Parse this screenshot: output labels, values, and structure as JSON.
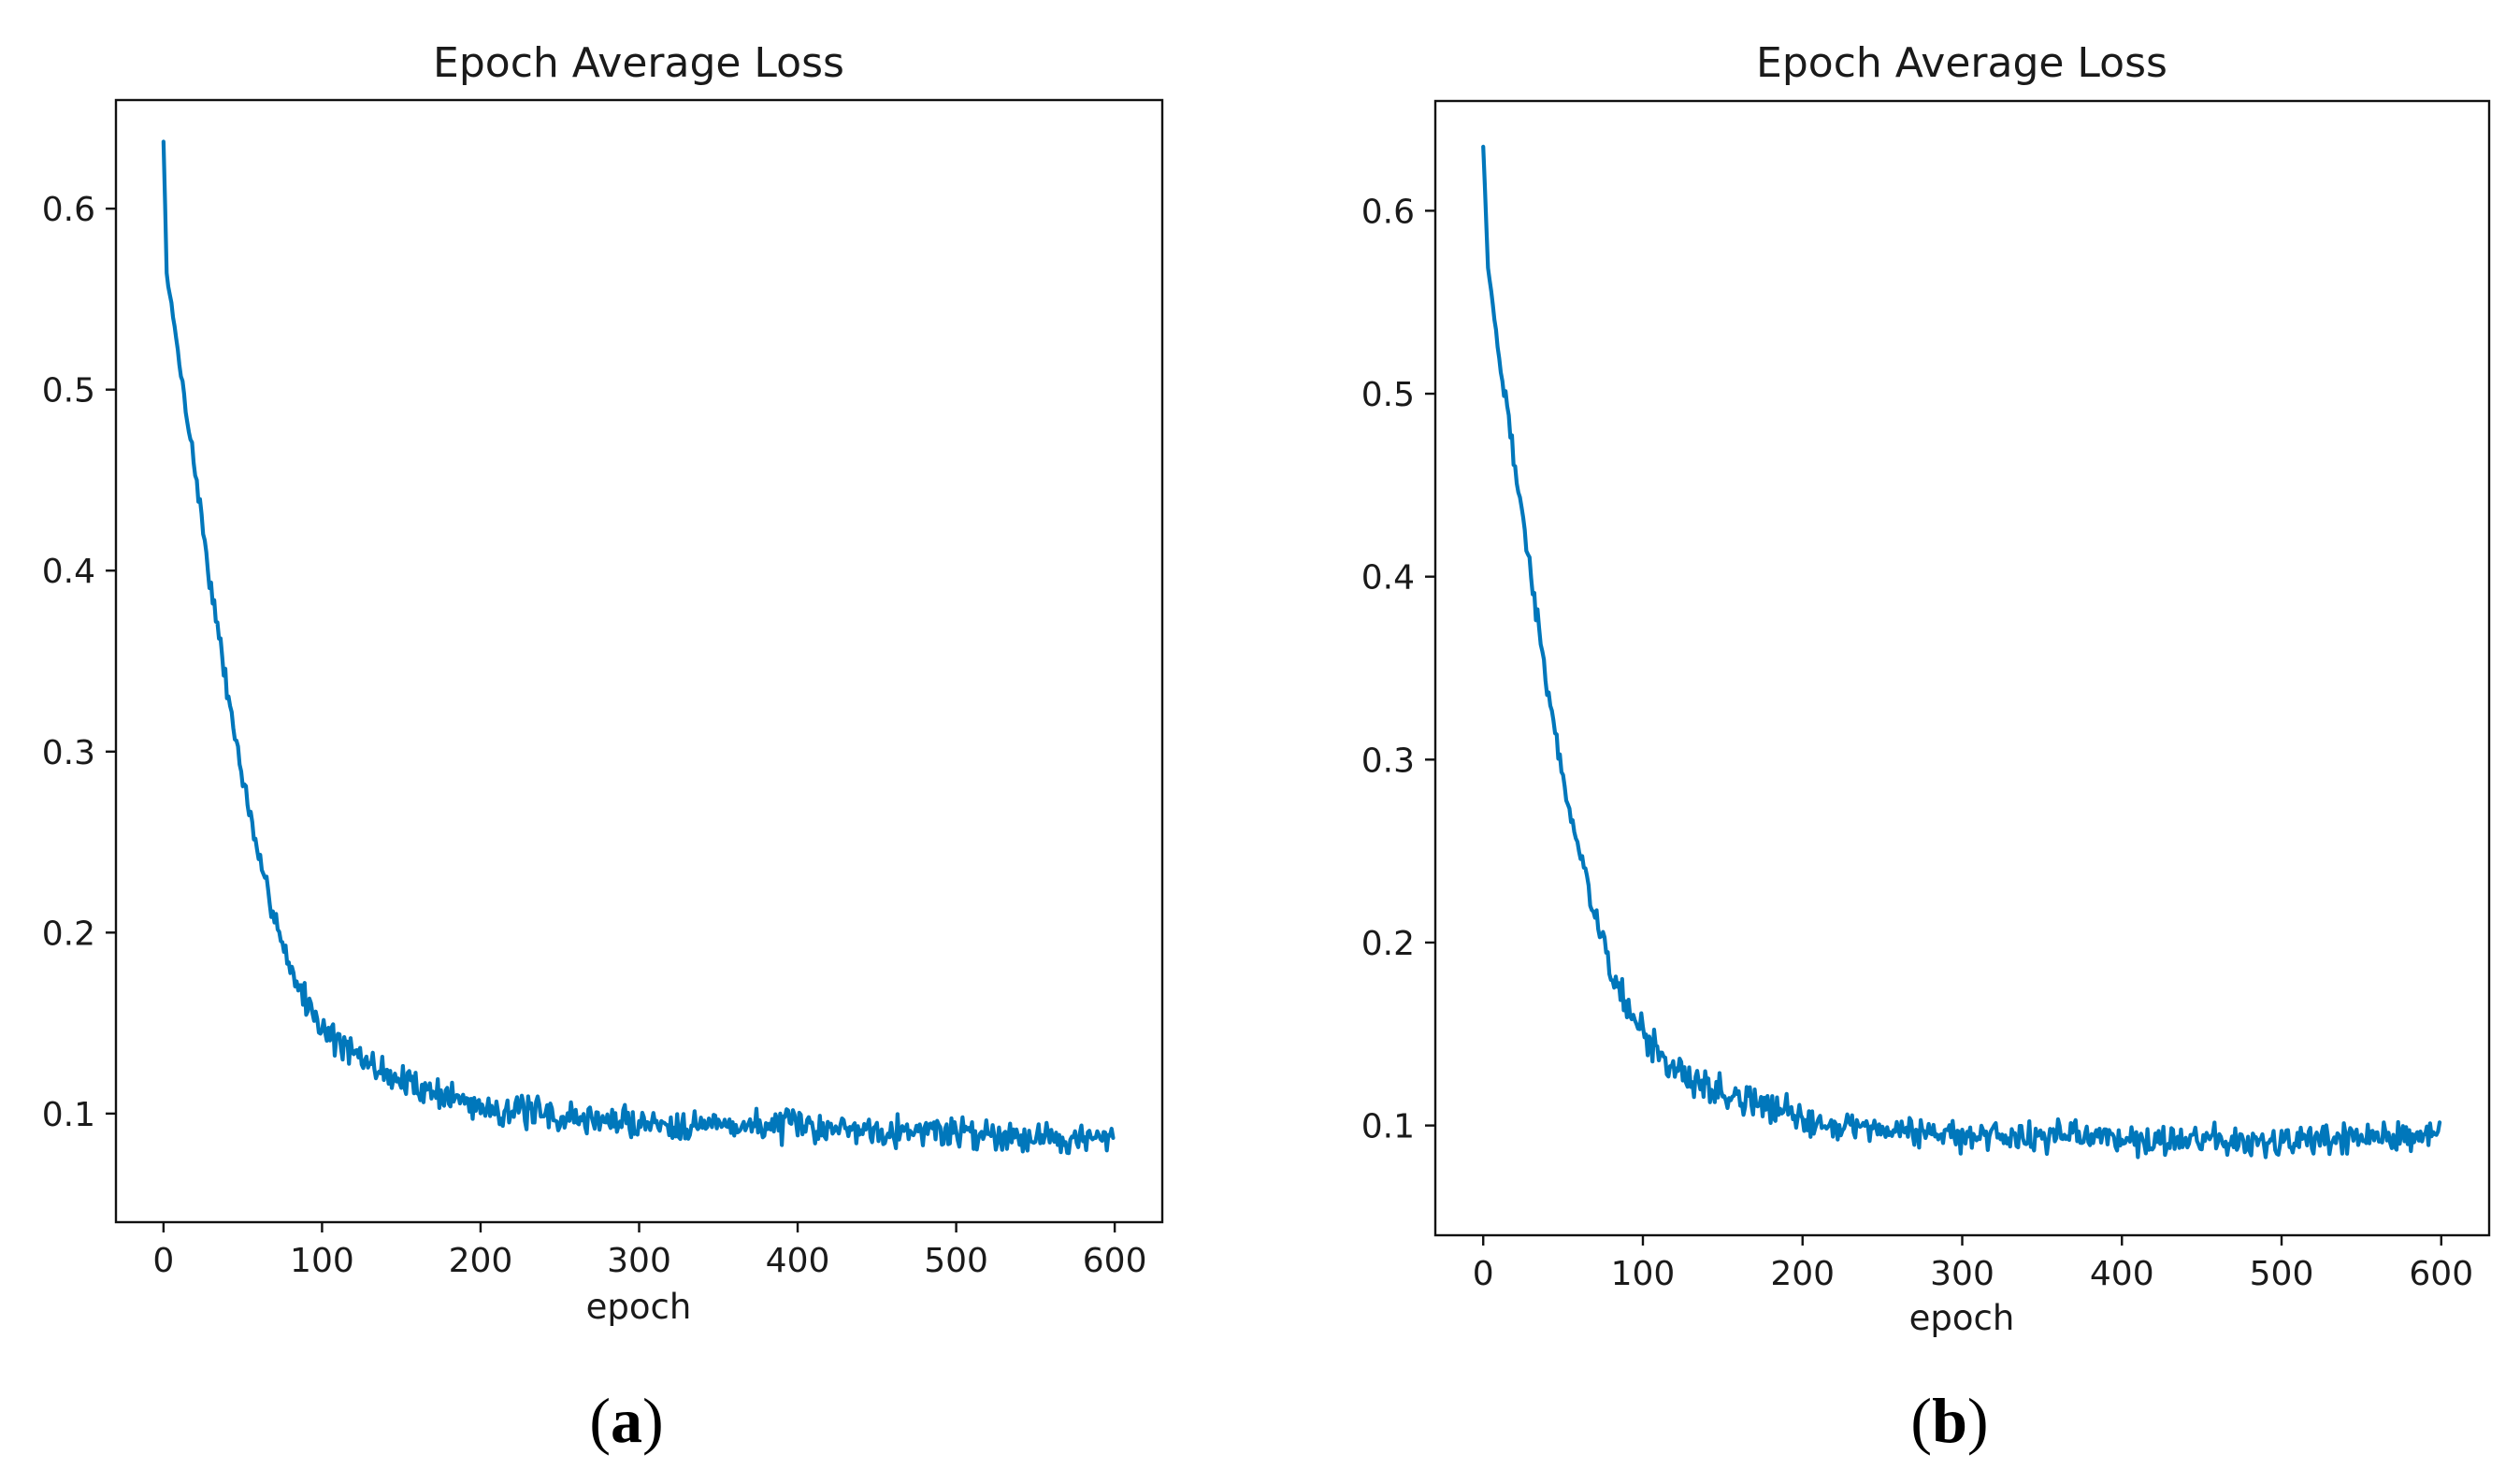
{
  "colors": {
    "line": "#0077bb",
    "axes": "#111111",
    "text": "#1a1a1a",
    "background": "#ffffff"
  },
  "chart_data": [
    {
      "type": "line",
      "panel_label": "a",
      "title": "Epoch Average Loss",
      "xlabel": "epoch",
      "ylabel": "",
      "grid": false,
      "legend": "none",
      "xlim": [
        -30,
        630
      ],
      "ylim": [
        0.04,
        0.66
      ],
      "xticks": [
        0,
        100,
        200,
        300,
        400,
        500,
        600
      ],
      "yticks": [
        0.1,
        0.2,
        0.3,
        0.4,
        0.5,
        0.6
      ],
      "x_range": [
        0,
        599
      ],
      "series": [
        {
          "name": "loss",
          "curve": {
            "start": 0.637,
            "floor": 0.088,
            "decay_epochs": 40,
            "noise_amplitude": 0.011,
            "seed": 7
          },
          "anchors": [
            {
              "x": 0,
              "y": 0.637
            },
            {
              "x": 2,
              "y": 0.565
            },
            {
              "x": 10,
              "y": 0.515
            },
            {
              "x": 20,
              "y": 0.455
            },
            {
              "x": 30,
              "y": 0.39
            },
            {
              "x": 40,
              "y": 0.335
            },
            {
              "x": 50,
              "y": 0.285
            },
            {
              "x": 60,
              "y": 0.24
            },
            {
              "x": 70,
              "y": 0.21
            },
            {
              "x": 80,
              "y": 0.18
            },
            {
              "x": 90,
              "y": 0.162
            },
            {
              "x": 100,
              "y": 0.148
            },
            {
              "x": 120,
              "y": 0.132
            },
            {
              "x": 150,
              "y": 0.118
            },
            {
              "x": 200,
              "y": 0.104
            },
            {
              "x": 250,
              "y": 0.098
            },
            {
              "x": 300,
              "y": 0.095
            },
            {
              "x": 400,
              "y": 0.093
            },
            {
              "x": 500,
              "y": 0.09
            },
            {
              "x": 599,
              "y": 0.085
            }
          ]
        }
      ]
    },
    {
      "type": "line",
      "panel_label": "b",
      "title": "Epoch Average Loss",
      "xlabel": "epoch",
      "ylabel": "",
      "grid": false,
      "legend": "none",
      "xlim": [
        -30,
        630
      ],
      "ylim": [
        0.04,
        0.66
      ],
      "xticks": [
        0,
        100,
        200,
        300,
        400,
        500,
        600
      ],
      "yticks": [
        0.1,
        0.2,
        0.3,
        0.4,
        0.5,
        0.6
      ],
      "x_range": [
        0,
        599
      ],
      "series": [
        {
          "name": "loss",
          "curve": {
            "start": 0.635,
            "floor": 0.09,
            "decay_epochs": 42,
            "noise_amplitude": 0.011,
            "seed": 19
          },
          "anchors": [
            {
              "x": 0,
              "y": 0.635
            },
            {
              "x": 3,
              "y": 0.57
            },
            {
              "x": 10,
              "y": 0.52
            },
            {
              "x": 20,
              "y": 0.46
            },
            {
              "x": 30,
              "y": 0.4
            },
            {
              "x": 40,
              "y": 0.34
            },
            {
              "x": 50,
              "y": 0.29
            },
            {
              "x": 60,
              "y": 0.25
            },
            {
              "x": 70,
              "y": 0.215
            },
            {
              "x": 80,
              "y": 0.185
            },
            {
              "x": 90,
              "y": 0.165
            },
            {
              "x": 100,
              "y": 0.15
            },
            {
              "x": 120,
              "y": 0.13
            },
            {
              "x": 150,
              "y": 0.118
            },
            {
              "x": 200,
              "y": 0.104
            },
            {
              "x": 250,
              "y": 0.098
            },
            {
              "x": 300,
              "y": 0.095
            },
            {
              "x": 400,
              "y": 0.093
            },
            {
              "x": 500,
              "y": 0.09
            },
            {
              "x": 599,
              "y": 0.095
            }
          ]
        }
      ]
    }
  ]
}
